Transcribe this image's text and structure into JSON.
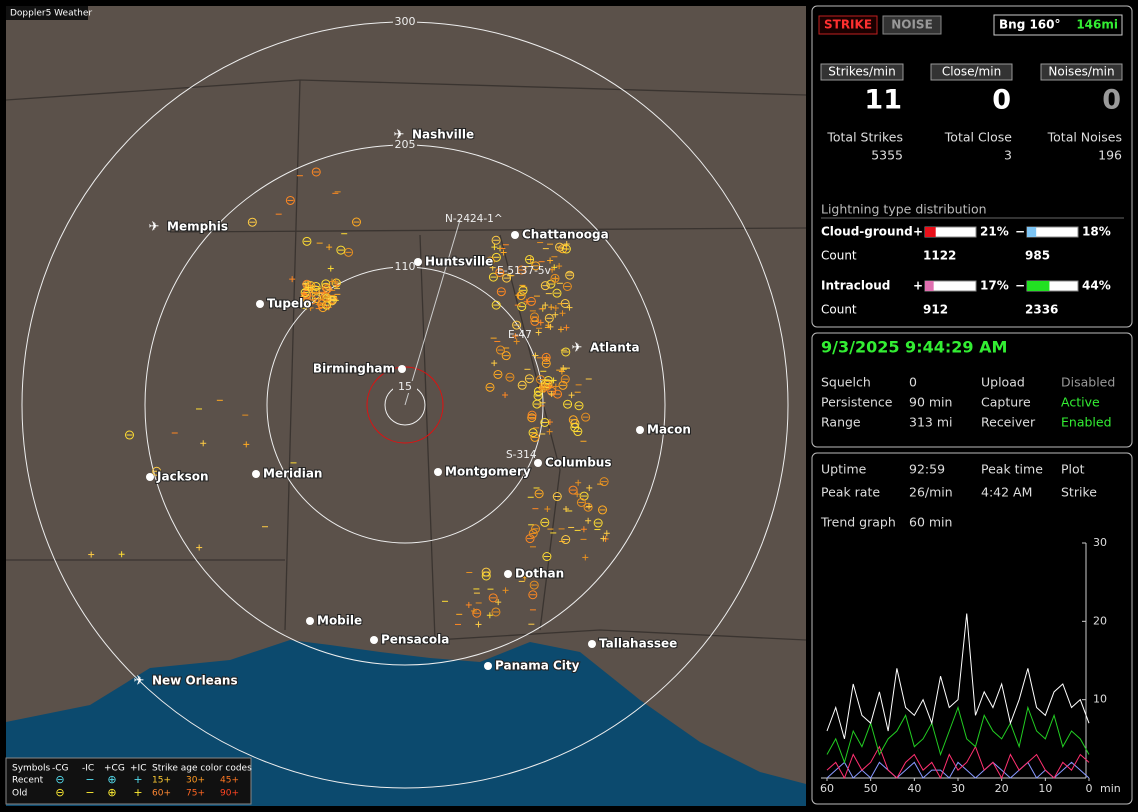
{
  "map": {
    "badge": "Doppler5 Weather",
    "rings": [
      "300",
      "205",
      "110",
      "15"
    ],
    "cities": [
      "Nashville",
      "Memphis",
      "Chattanooga",
      "Huntsville",
      "Tupelo",
      "Birmingham",
      "Atlanta",
      "Macon",
      "Jackson",
      "Meridian",
      "Montgomery",
      "Columbus",
      "Dothan",
      "Mobile",
      "Pensacola",
      "Tallahassee",
      "Panama City",
      "New Orleans"
    ],
    "tags": [
      "N-2424-1^",
      "E-5137-5v",
      "E-47",
      "S-314"
    ],
    "legend": {
      "title": "Symbols",
      "symbols": [
        "-CG",
        "-IC",
        "+CG",
        "+IC"
      ],
      "codes": "Strike age color codes",
      "rows": [
        "Recent",
        "Old"
      ],
      "ages": [
        "15+",
        "30+",
        "45+",
        "60+",
        "75+",
        "90+"
      ]
    }
  },
  "header": {
    "strike": "STRIKE",
    "noise": "NOISE",
    "bearing": "Bng 160°",
    "distance": "146mi"
  },
  "rates": [
    {
      "label": "Strikes/min",
      "value": 11
    },
    {
      "label": "Close/min",
      "value": 0
    },
    {
      "label": "Noises/min",
      "value": 0
    }
  ],
  "totals": [
    {
      "label": "Total Strikes",
      "value": 5355
    },
    {
      "label": "Total Close",
      "value": 3
    },
    {
      "label": "Total Noises",
      "value": 196
    }
  ],
  "distribution": {
    "title": "Lightning type distribution",
    "count_label": "Count",
    "rows": [
      {
        "name": "Cloud-ground",
        "plus": {
          "value": 21,
          "label": "21%",
          "color": "#e8101a"
        },
        "minus": {
          "value": 18,
          "label": "18%",
          "color": "#7cc4f4"
        },
        "plus_count": 1122,
        "minus_count": 985
      },
      {
        "name": "Intracloud",
        "plus": {
          "value": 17,
          "label": "17%",
          "color": "#e070b0"
        },
        "minus": {
          "value": 44,
          "label": "44%",
          "color": "#22e022"
        },
        "plus_count": 912,
        "minus_count": 2336
      }
    ],
    "plus_sign": "+",
    "minus_sign": "−"
  },
  "status": {
    "datetime": "9/3/2025 9:44:29 AM",
    "rows": [
      [
        "Squelch",
        "0",
        "Upload",
        "Disabled"
      ],
      [
        "Persistence",
        "90 min",
        "Capture",
        "Active"
      ],
      [
        "Range",
        "313 mi",
        "Receiver",
        "Enabled"
      ]
    ]
  },
  "uptime": {
    "rows": [
      [
        "Uptime",
        "92:59",
        "Peak time",
        "Plot"
      ],
      [
        "Peak rate",
        "26/min",
        "4:42 AM",
        "Strike"
      ]
    ],
    "trend_label": "Trend graph",
    "trend_window": "60 min"
  },
  "trend": {
    "type": "line",
    "ylim": [
      0,
      30
    ],
    "yticks": [
      10,
      20,
      30
    ],
    "xlim": [
      60,
      0
    ],
    "xticks": [
      60,
      50,
      40,
      30,
      20,
      10,
      0
    ],
    "xlabel": "min",
    "x": [
      60,
      58,
      56,
      54,
      52,
      50,
      48,
      46,
      44,
      42,
      40,
      38,
      36,
      34,
      32,
      30,
      28,
      26,
      24,
      22,
      20,
      18,
      16,
      14,
      12,
      10,
      8,
      6,
      4,
      2,
      0
    ],
    "series": [
      {
        "color": "#ffffff",
        "values": [
          6,
          9,
          5,
          12,
          8,
          7,
          11,
          6,
          14,
          9,
          8,
          10,
          7,
          13,
          9,
          10,
          21,
          8,
          11,
          9,
          12,
          7,
          10,
          14,
          9,
          8,
          11,
          12,
          9,
          10,
          7
        ]
      },
      {
        "color": "#22cc22",
        "values": [
          3,
          5,
          2,
          6,
          4,
          7,
          3,
          5,
          6,
          8,
          4,
          5,
          7,
          3,
          6,
          9,
          5,
          4,
          8,
          6,
          5,
          7,
          4,
          9,
          6,
          5,
          8,
          4,
          6,
          5,
          3
        ]
      },
      {
        "color": "#ff3070",
        "values": [
          1,
          2,
          0,
          3,
          1,
          2,
          4,
          1,
          0,
          2,
          3,
          1,
          2,
          0,
          3,
          1,
          2,
          4,
          1,
          2,
          0,
          3,
          1,
          2,
          3,
          1,
          0,
          2,
          1,
          3,
          2
        ]
      },
      {
        "color": "#8899ff",
        "values": [
          0,
          1,
          2,
          0,
          1,
          0,
          2,
          1,
          0,
          1,
          2,
          0,
          1,
          1,
          0,
          2,
          1,
          0,
          1,
          2,
          1,
          0,
          1,
          2,
          0,
          1,
          0,
          1,
          2,
          1,
          0
        ]
      }
    ]
  }
}
